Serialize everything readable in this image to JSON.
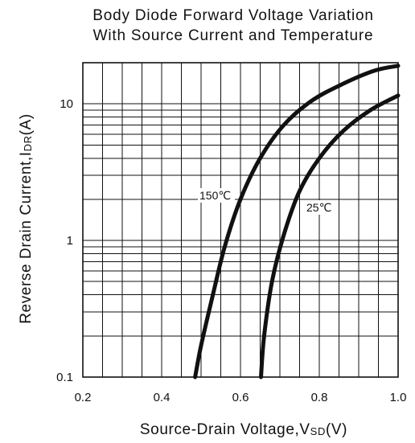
{
  "chart_data": {
    "type": "line",
    "title": [
      "Body Diode Forward Voltage Variation",
      "With Source Current and Temperature"
    ],
    "xlabel": "Source-Drain Voltage,V",
    "xlabel_sub": "SD",
    "xlabel_unit": "(V)",
    "ylabel": "Reverse Drain Current,I",
    "ylabel_sub": "DR",
    "ylabel_unit": "(A)",
    "xlim": [
      0.2,
      1.0
    ],
    "ylim": [
      0.1,
      20
    ],
    "yscale": "log",
    "grid": true,
    "x_ticks": [
      {
        "value": 0.2,
        "label": "0.2"
      },
      {
        "value": 0.4,
        "label": "0.4"
      },
      {
        "value": 0.6,
        "label": "0.6"
      },
      {
        "value": 0.8,
        "label": "0.8"
      },
      {
        "value": 1.0,
        "label": "1.0"
      }
    ],
    "y_ticks": [
      {
        "value": 0.1,
        "label": "0.1"
      },
      {
        "value": 1,
        "label": "1"
      },
      {
        "value": 10,
        "label": "10"
      }
    ],
    "series": [
      {
        "name": "150℃",
        "x": [
          0.485,
          0.5,
          0.53,
          0.56,
          0.6,
          0.65,
          0.71,
          0.78,
          0.86,
          0.94,
          1.0
        ],
        "y": [
          0.1,
          0.17,
          0.4,
          0.9,
          2.0,
          4.0,
          7.0,
          10.5,
          14.0,
          17.5,
          19.0
        ]
      },
      {
        "name": "25℃",
        "x": [
          0.652,
          0.66,
          0.68,
          0.71,
          0.75,
          0.8,
          0.86,
          0.93,
          1.0
        ],
        "y": [
          0.1,
          0.2,
          0.5,
          1.1,
          2.3,
          4.0,
          6.3,
          9.0,
          11.5
        ]
      }
    ]
  }
}
